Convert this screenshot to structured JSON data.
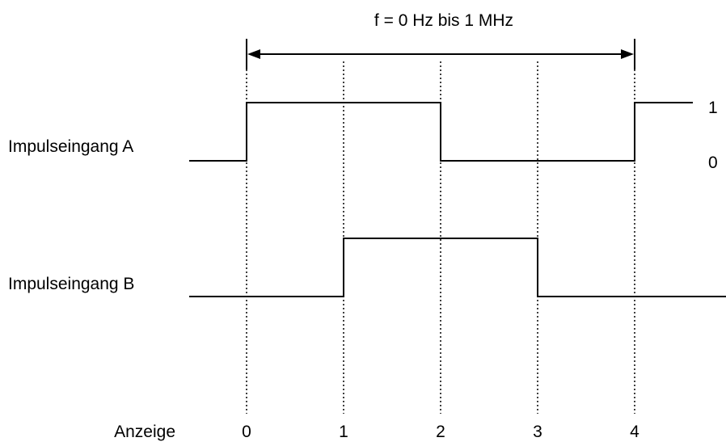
{
  "title": "f = 0 Hz bis 1 MHz",
  "channels": [
    {
      "label": "Impulseingang A"
    },
    {
      "label": "Impulseingang B"
    }
  ],
  "levels": {
    "high": "1",
    "low": "0"
  },
  "axis_label": "Anzeige",
  "count_values": [
    "0",
    "1",
    "2",
    "3",
    "4"
  ]
}
